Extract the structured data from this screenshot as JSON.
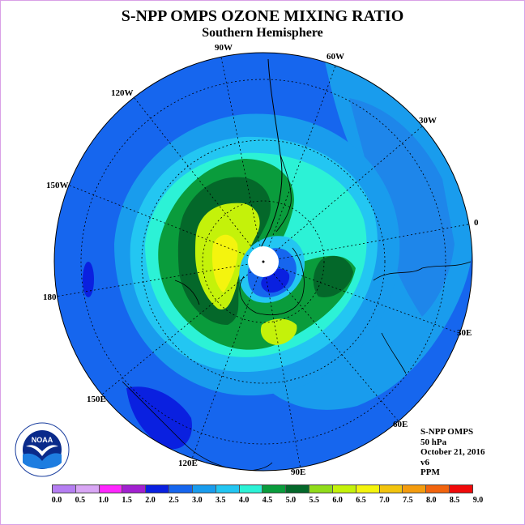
{
  "title": "S-NPP OMPS OZONE MIXING RATIO",
  "subtitle": "Southern Hemisphere",
  "info": {
    "instrument": "S-NPP OMPS",
    "level": "50 hPa",
    "date": "October 21, 2016",
    "version": "v6",
    "units": "PPM"
  },
  "longitude_labels": [
    "90W",
    "60W",
    "30W",
    "0",
    "30E",
    "60E",
    "90E",
    "120E",
    "150E",
    "180",
    "150W",
    "120W"
  ],
  "logo": {
    "text": "NOAA",
    "icon": "noaa-seagull-logo-icon"
  },
  "colorbar": {
    "ticks": [
      "0.0",
      "0.5",
      "1.0",
      "1.5",
      "2.0",
      "2.5",
      "3.0",
      "3.5",
      "4.0",
      "4.5",
      "5.0",
      "5.5",
      "6.0",
      "6.5",
      "7.0",
      "7.5",
      "8.0",
      "8.5",
      "9.0"
    ],
    "colors": [
      "#b57ef2",
      "#d9a6f5",
      "#ff27ff",
      "#a220d0",
      "#0a20e0",
      "#1666ee",
      "#199ced",
      "#23c6f2",
      "#2cf2d6",
      "#0a9c3c",
      "#04682a",
      "#90dc1a",
      "#c4f20a",
      "#f4f40e",
      "#f2c40e",
      "#f49c0e",
      "#f2640e",
      "#f00a0a",
      "#8c5a3c"
    ]
  }
}
